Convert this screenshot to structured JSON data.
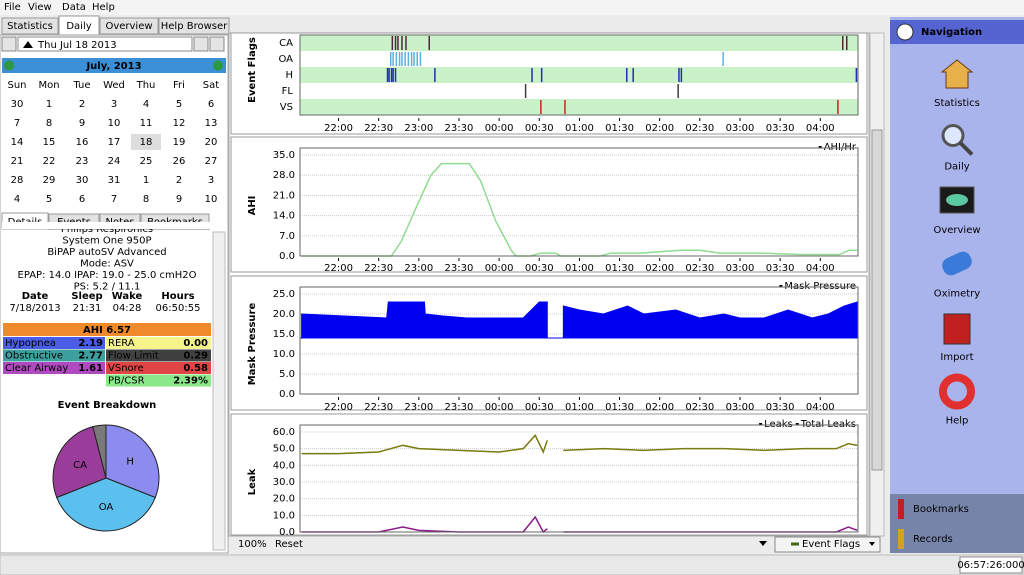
{
  "menu": [
    "File",
    "View",
    "Data",
    "Help"
  ],
  "tabs": [
    "Statistics",
    "Daily",
    "Overview",
    "Help Browser"
  ],
  "date": "Thu Jul 18 2013",
  "calendar": {
    "month": "July,  2013",
    "weekdays": [
      "Sun",
      "Mon",
      "Tue",
      "Wed",
      "Thu",
      "Fri",
      "Sat"
    ],
    "weeks": [
      [
        30,
        1,
        2,
        3,
        4,
        5,
        6
      ],
      [
        7,
        8,
        9,
        10,
        11,
        12,
        13
      ],
      [
        14,
        15,
        16,
        17,
        18,
        19,
        20
      ],
      [
        21,
        22,
        23,
        24,
        25,
        26,
        27
      ],
      [
        28,
        29,
        30,
        31,
        1,
        2,
        3
      ],
      [
        4,
        5,
        6,
        7,
        8,
        9,
        10
      ]
    ],
    "selected": 18
  },
  "detail_tabs": [
    "Details",
    "Events",
    "Notes",
    "Bookmarks"
  ],
  "device": [
    "Philips Respironics",
    "System One 950P",
    "BiPAP autoSV Advanced",
    "Mode: ASV",
    "EPAP: 14.0 IPAP: 19.0 - 25.0 cmH2O",
    "PS: 5.2 / 11.1"
  ],
  "session": {
    "headers": [
      "Date",
      "Sleep",
      "Wake",
      "Hours"
    ],
    "values": [
      "7/18/2013",
      "21:31",
      "04:28",
      "06:50:55"
    ]
  },
  "ahi": "AHI 6.57",
  "indices_left": [
    [
      "Hypopnea",
      "2.19"
    ],
    [
      "Obstructive",
      "2.77"
    ],
    [
      "Clear Airway",
      "1.61"
    ]
  ],
  "indices_right": [
    [
      "RERA",
      "0.00"
    ],
    [
      "Flow Limit",
      "0.29"
    ],
    [
      "VSnore",
      "0.58"
    ],
    [
      "PB/CSR",
      "2.39%"
    ]
  ],
  "breakdown": {
    "title": "Event Breakdown",
    "labels": [
      "H",
      "OA",
      "CA",
      null
    ],
    "values": [
      31,
      38,
      27,
      4
    ],
    "colors": [
      "#8c8cf0",
      "#5cc0ee",
      "#9a3c9a",
      "#7a7a7a"
    ]
  },
  "time": {
    "xlim": [
      21.52,
      28.47
    ],
    "ticks": [
      {
        "value": 22,
        "label": "22:00"
      },
      {
        "value": 22.5,
        "label": "22:30"
      },
      {
        "value": 23,
        "label": "23:00"
      },
      {
        "value": 23.5,
        "label": "23:30"
      },
      {
        "value": 24,
        "label": "00:00"
      },
      {
        "value": 24.5,
        "label": "00:30"
      },
      {
        "value": 25,
        "label": "01:00"
      },
      {
        "value": 25.5,
        "label": "01:30"
      },
      {
        "value": 26,
        "label": "02:00"
      },
      {
        "value": 26.5,
        "label": "02:30"
      },
      {
        "value": 27,
        "label": "03:00"
      },
      {
        "value": 27.5,
        "label": "03:30"
      },
      {
        "value": 28,
        "label": "04:00"
      }
    ]
  },
  "event_flags": {
    "label": "Event Flags",
    "channels": [
      {
        "name": "CA",
        "color": "#4a2a3a",
        "times": [
          22.67,
          22.71,
          22.74,
          22.79,
          22.84,
          23.13,
          28.28,
          28.33
        ]
      },
      {
        "name": "OA",
        "color": "#5ab0e0",
        "times": [
          22.65,
          22.68,
          22.72,
          22.76,
          22.79,
          22.83,
          22.87,
          22.91,
          22.94,
          22.98,
          23.02,
          26.79
        ]
      },
      {
        "name": "H",
        "color": "#2030b0",
        "times": [
          22.61,
          22.63,
          22.66,
          22.68,
          22.71,
          23.2,
          24.41,
          24.53,
          25.59,
          25.67,
          26.24,
          26.27,
          28.45
        ]
      },
      {
        "name": "FL",
        "color": "#404040",
        "times": [
          24.33,
          26.23
        ]
      },
      {
        "name": "VS",
        "color": "#d02020",
        "times": [
          24.52,
          24.82,
          28.22
        ]
      }
    ]
  },
  "ahi_graph": {
    "label": "AHI",
    "ylim": [
      0,
      35
    ],
    "yticks": [
      {
        "value": 0,
        "label": "0.0"
      },
      {
        "value": 7,
        "label": "7.0"
      },
      {
        "value": 14,
        "label": "14.0"
      },
      {
        "value": 21,
        "label": "21.0"
      },
      {
        "value": 28,
        "label": "28.0"
      },
      {
        "value": 35,
        "label": "35.0"
      }
    ],
    "series": [
      {
        "name": "AHI/Hr",
        "color": "#90dc90",
        "x": [
          21.54,
          22.66,
          22.78,
          22.97,
          23.15,
          23.28,
          23.63,
          23.77,
          23.96,
          24.15,
          24.21,
          24.39,
          24.52,
          24.7,
          24.77,
          25.26,
          25.39,
          25.76,
          26.26,
          26.5,
          26.75,
          27.25,
          27.74,
          28.24,
          28.36,
          28.46
        ],
        "values": [
          0,
          0,
          5,
          17,
          28,
          32,
          32,
          26,
          12,
          2,
          0,
          0,
          1,
          1,
          0,
          0,
          1,
          1,
          2,
          2,
          1,
          1,
          0.5,
          0.5,
          2,
          2
        ]
      }
    ]
  },
  "pressure_graph": {
    "label": "Mask Pressure",
    "ylim": [
      0,
      25
    ],
    "yticks": [
      {
        "value": 0,
        "label": "0.0"
      },
      {
        "value": 5,
        "label": "5.0"
      },
      {
        "value": 10,
        "label": "10.0"
      },
      {
        "value": 15,
        "label": "15.0"
      },
      {
        "value": 20,
        "label": "20.0"
      },
      {
        "value": 25,
        "label": "25.0"
      }
    ],
    "baseline": 14,
    "series": [
      {
        "name": "Mask Pressure",
        "color": "#0000f0",
        "x": [
          21.54,
          22.6,
          22.62,
          23.07,
          23.08,
          23.3,
          23.6,
          24.0,
          24.3,
          24.5,
          24.6,
          24.7,
          24.8,
          25.0,
          25.3,
          25.6,
          25.8,
          26.2,
          26.5,
          26.8,
          27.0,
          27.3,
          27.6,
          27.9,
          28.1,
          28.3,
          28.46
        ],
        "values": [
          20,
          19,
          23,
          23,
          20,
          19.5,
          19,
          19,
          19,
          23,
          23,
          null,
          22,
          21,
          20,
          22,
          20,
          21,
          19,
          20,
          19,
          19,
          21,
          19,
          20,
          22,
          23
        ]
      }
    ]
  },
  "leak_graph": {
    "label": "Leak",
    "ylim": [
      0,
      60
    ],
    "yticks": [
      {
        "value": 0,
        "label": "0.0"
      },
      {
        "value": 10,
        "label": "10.0"
      },
      {
        "value": 20,
        "label": "20.0"
      },
      {
        "value": 30,
        "label": "30.0"
      },
      {
        "value": 40,
        "label": "40.0"
      },
      {
        "value": 50,
        "label": "50.0"
      },
      {
        "value": 60,
        "label": "60.0"
      }
    ],
    "series": [
      {
        "name": "Leaks",
        "color": "#8a1a8a",
        "x": [
          21.54,
          22.0,
          22.5,
          22.8,
          23.0,
          23.5,
          24.0,
          24.3,
          24.45,
          24.55,
          24.6,
          24.7,
          24.8,
          25.3,
          25.8,
          26.3,
          26.8,
          27.3,
          27.8,
          28.2,
          28.35,
          28.46
        ],
        "values": [
          0,
          0,
          0,
          3,
          1,
          0,
          0,
          0,
          9,
          0,
          2,
          null,
          0,
          0,
          0,
          0,
          0,
          0,
          0,
          0,
          3,
          1
        ]
      },
      {
        "name": "Total Leaks",
        "color": "#7a7a10",
        "x": [
          21.54,
          22.0,
          22.5,
          22.8,
          23.0,
          23.5,
          24.0,
          24.3,
          24.45,
          24.55,
          24.6,
          24.7,
          24.8,
          25.3,
          25.8,
          26.3,
          26.8,
          27.3,
          27.8,
          28.2,
          28.35,
          28.46
        ],
        "values": [
          47,
          47,
          48,
          52,
          50,
          49,
          48,
          50,
          58,
          48,
          55,
          null,
          49,
          50,
          49,
          50,
          50,
          49,
          50,
          50,
          53,
          52
        ]
      }
    ]
  },
  "bottom": {
    "zoom": "100%",
    "reset": "Reset",
    "selector": "Event Flags"
  },
  "navigation": {
    "title": "Navigation",
    "items": [
      "Statistics",
      "Daily",
      "Overview",
      "Oximetry",
      "Import",
      "Help"
    ],
    "extra": [
      "Bookmarks",
      "Records"
    ]
  },
  "status": "06:57:26:000"
}
